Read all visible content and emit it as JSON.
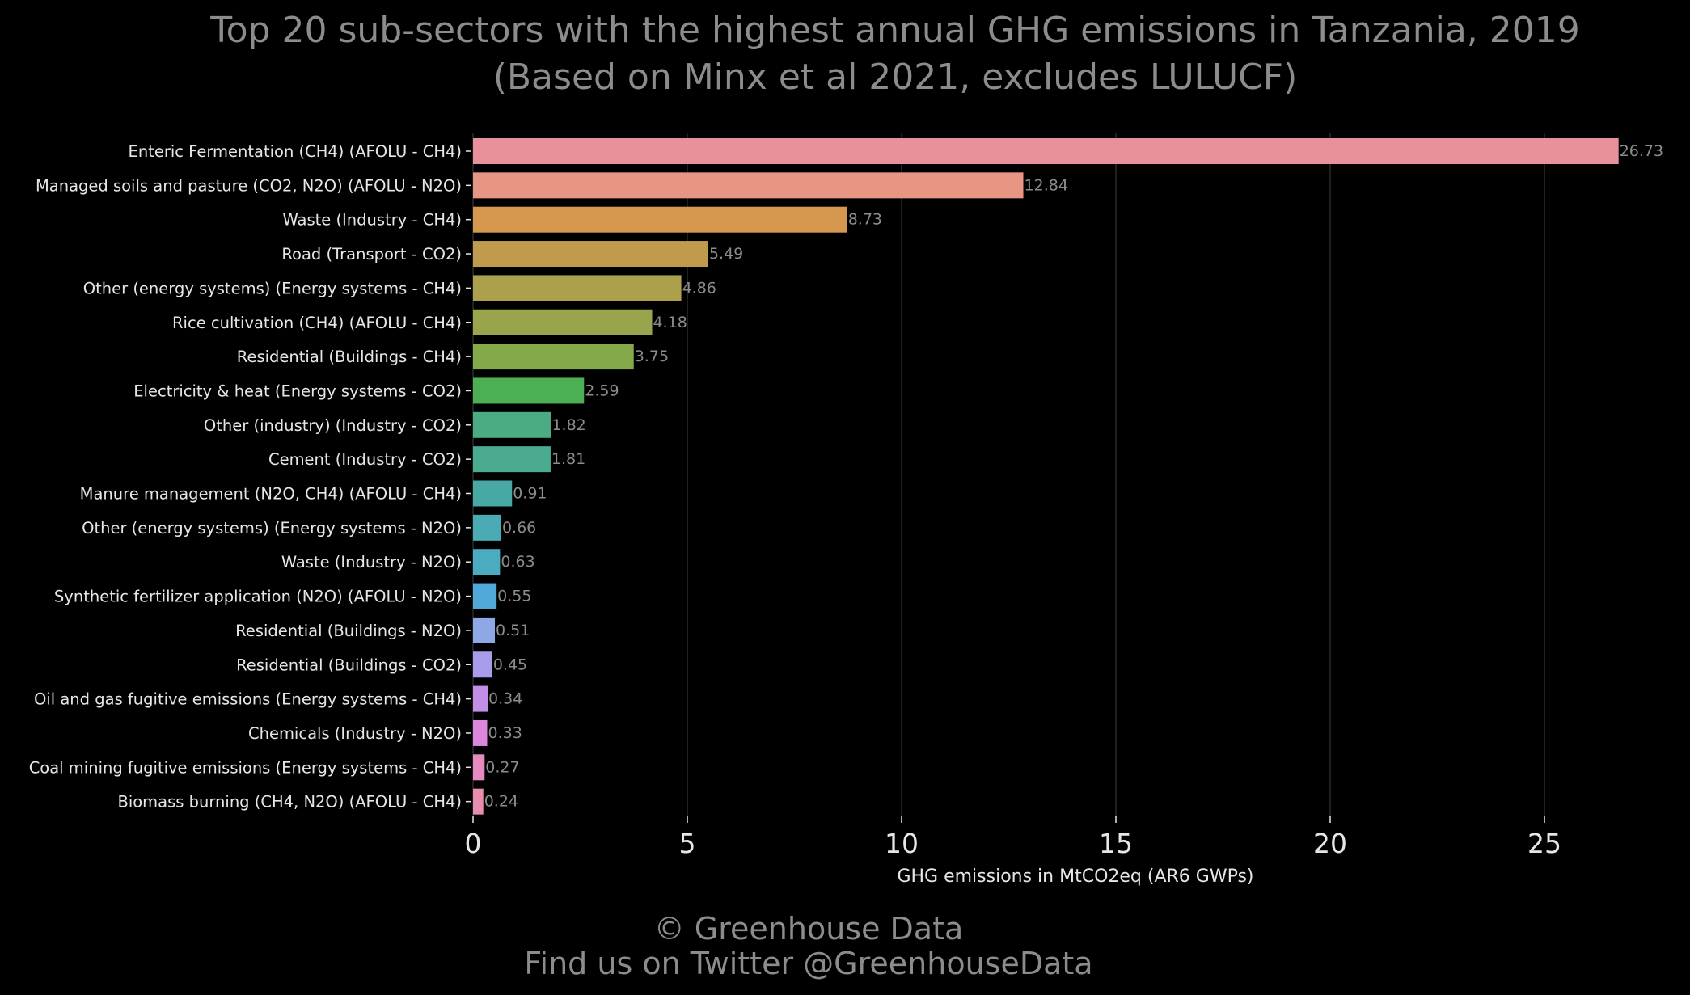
{
  "chart_data": {
    "type": "bar",
    "orientation": "horizontal",
    "title": "Top 20 sub-sectors with the highest annual GHG emissions in Tanzania, 2019",
    "subtitle": "(Based on Minx et al 2021, excludes LULUCF)",
    "xlabel": "GHG emissions in MtCO2eq (AR6 GWPs)",
    "ylabel": "",
    "xlim": [
      0,
      28
    ],
    "x_ticks": [
      0,
      5,
      10,
      15,
      20,
      25
    ],
    "x_tick_labels": [
      "0",
      "5",
      "10",
      "15",
      "20",
      "25"
    ],
    "grid": "vertical",
    "categories": [
      "Enteric Fermentation (CH4) (AFOLU - CH4)",
      "Managed soils and pasture (CO2, N2O) (AFOLU - N2O)",
      "Waste (Industry - CH4)",
      "Road (Transport - CO2)",
      "Other (energy systems) (Energy systems - CH4)",
      "Rice cultivation (CH4) (AFOLU - CH4)",
      "Residential (Buildings - CH4)",
      "Electricity & heat (Energy systems - CO2)",
      "Other (industry) (Industry - CO2)",
      "Cement (Industry - CO2)",
      "Manure management (N2O, CH4) (AFOLU - CH4)",
      "Other (energy systems) (Energy systems - N2O)",
      "Waste (Industry - N2O)",
      "Synthetic fertilizer application (N2O) (AFOLU - N2O)",
      "Residential (Buildings - N2O)",
      "Residential (Buildings - CO2)",
      "Oil and gas fugitive emissions (Energy systems - CH4)",
      "Chemicals (Industry - N2O)",
      "Coal mining fugitive emissions (Energy systems - CH4)",
      "Biomass burning (CH4, N2O) (AFOLU - CH4)"
    ],
    "values": [
      26.73,
      12.84,
      8.73,
      5.49,
      4.86,
      4.18,
      3.75,
      2.59,
      1.82,
      1.81,
      0.91,
      0.66,
      0.63,
      0.55,
      0.51,
      0.45,
      0.34,
      0.33,
      0.27,
      0.24
    ],
    "value_labels": [
      "26.73",
      "12.84",
      "8.73",
      "5.49",
      "4.86",
      "4.18",
      "3.75",
      "2.59",
      "1.82",
      "1.81",
      "0.91",
      "0.66",
      "0.63",
      "0.55",
      "0.51",
      "0.45",
      "0.34",
      "0.33",
      "0.27",
      "0.24"
    ],
    "colors": [
      "#e8919c",
      "#e69683",
      "#d6974f",
      "#c09b4e",
      "#aca04c",
      "#99a44c",
      "#84a94a",
      "#4caf53",
      "#4bab83",
      "#4aab91",
      "#48a9a4",
      "#4aabb4",
      "#4bacc0",
      "#50a9d8",
      "#8ea8e6",
      "#a79deb",
      "#c18fe8",
      "#dd86dd",
      "#e68bbf",
      "#e88db0"
    ]
  },
  "footer": {
    "copyright": "© Greenhouse Data",
    "twitter": "Find us on Twitter @GreenhouseData"
  }
}
